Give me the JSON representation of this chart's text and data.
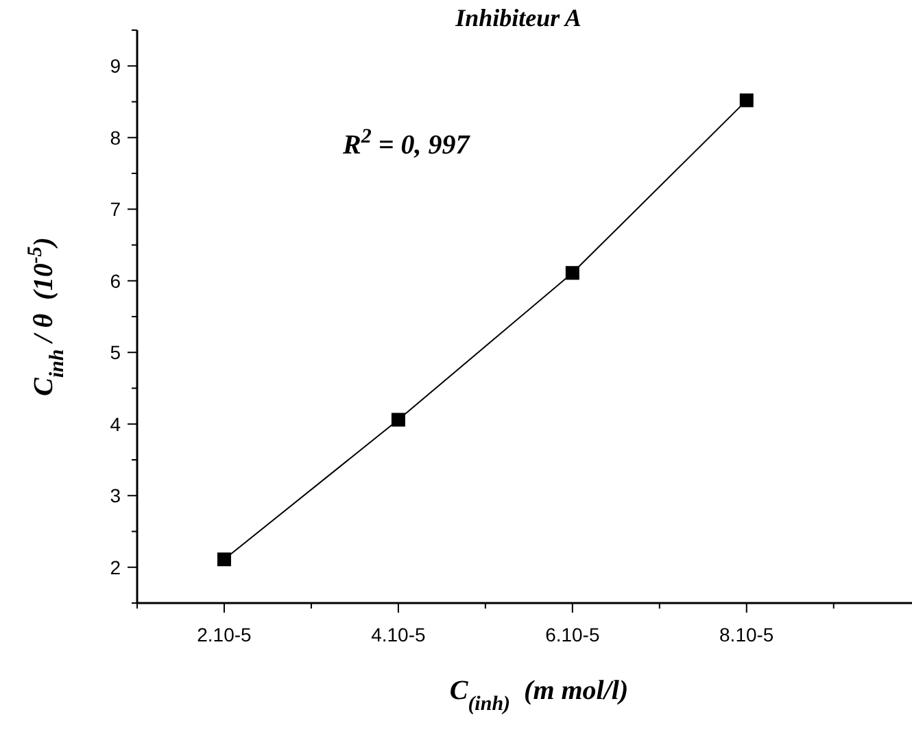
{
  "chart_data": {
    "type": "line",
    "title": "Inhibiteur A",
    "xlabel": "C$_{(inh)}$  (m mol/l)",
    "ylabel": "C$_{inh}$ / θ  (10$^{-5}$)",
    "annotations": [
      "R$^{2}$ = 0, 997"
    ],
    "categories": [
      "2.10-5",
      "4.10-5",
      "6.10-5",
      "8.10-5"
    ],
    "series": [
      {
        "color": "#000000",
        "values": [
          2.11,
          4.06,
          6.11,
          8.52
        ]
      }
    ],
    "ylim": [
      1.5,
      9.5
    ],
    "yticks": [
      {
        "value": 1.5,
        "label": null
      },
      2,
      {
        "value": 2.5,
        "label": null
      },
      3,
      {
        "value": 3.5,
        "label": null
      },
      4,
      {
        "value": 4.5,
        "label": null
      },
      5,
      {
        "value": 5.5,
        "label": null
      },
      6,
      {
        "value": 6.5,
        "label": null
      },
      7,
      {
        "value": 7.5,
        "label": null
      },
      8,
      {
        "value": 8.5,
        "label": null
      },
      9,
      {
        "value": 9.5,
        "label": null
      }
    ],
    "grid": false,
    "marker": "square",
    "line_style": "solid"
  }
}
